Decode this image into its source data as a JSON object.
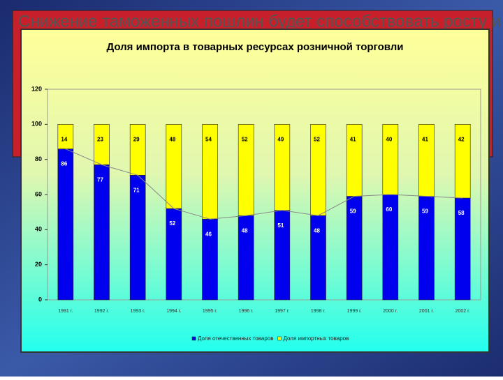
{
  "slide": {
    "background_text": "Снижение таможенных пошлин будет способствовать росту и"
  },
  "chart_data": {
    "type": "stacked_bar",
    "title": "Доля импорта в товарных ресурсах розничной торговли",
    "categories": [
      "1991 г.",
      "1992 г.",
      "1993 г.",
      "1994 г.",
      "1995 г.",
      "1996 г.",
      "1997 г.",
      "1998 г.",
      "1999 г.",
      "2000 г.",
      "2001 г.",
      "2002 г."
    ],
    "series": [
      {
        "name": "Доля отечественных товаров",
        "color": "#0000ee",
        "values": [
          86,
          77,
          71,
          52,
          46,
          48,
          51,
          48,
          59,
          60,
          59,
          58
        ]
      },
      {
        "name": "Доля импортных товаров",
        "color": "#ffff00",
        "values": [
          14,
          23,
          29,
          48,
          54,
          52,
          49,
          52,
          41,
          40,
          41,
          42
        ]
      }
    ],
    "ylim": [
      0,
      120
    ],
    "yticks": [
      0,
      20,
      40,
      60,
      80,
      100,
      120
    ],
    "legend": "bottom",
    "connector_line": true
  }
}
